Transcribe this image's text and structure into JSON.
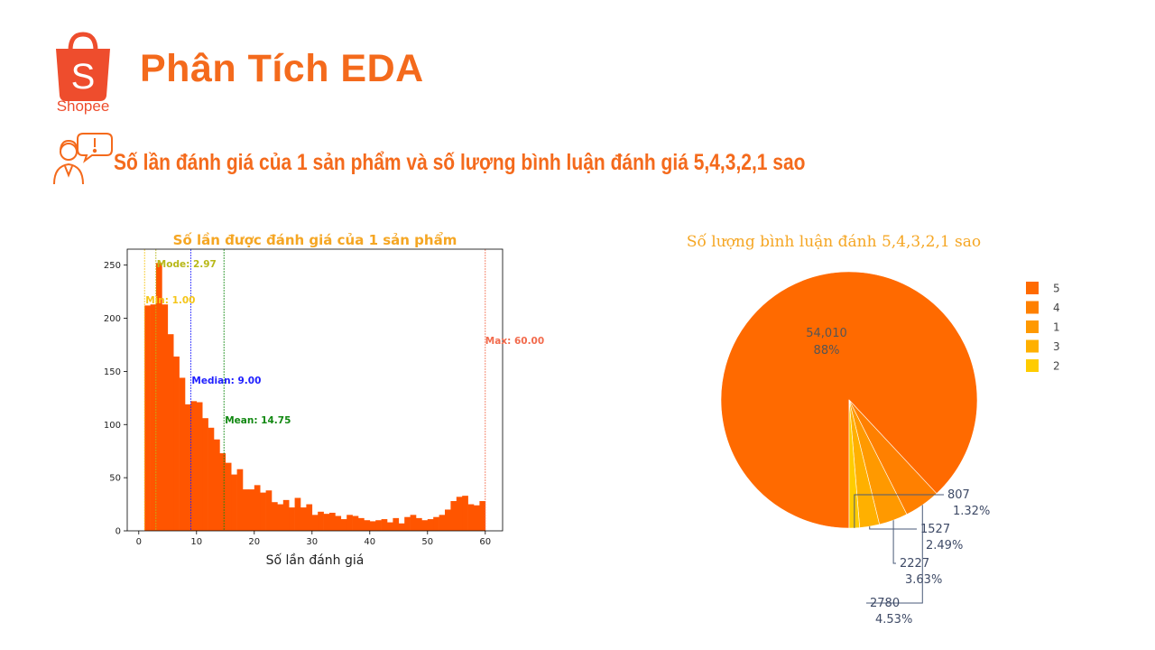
{
  "header": {
    "brand": "Shopee",
    "title": "Phân Tích EDA",
    "section_title": "Số lần đánh giá của 1 sản phẩm và số lượng bình luận đánh giá 5,4,3,2,1 sao"
  },
  "colors": {
    "brand": "#ee4d2d",
    "title": "#f46a1c",
    "hist_bar": "#ff5500",
    "min": "#f5c518",
    "mode": "#b8b818",
    "median": "#1f1fff",
    "mean": "#118811",
    "max": "#f26b4d"
  },
  "icons": {
    "logo": "shopee-bag-icon",
    "section": "person-alert-icon"
  },
  "chart_data": [
    {
      "type": "bar",
      "title": "Số lần được đánh giá của 1 sản phẩm",
      "xlabel": "Số lần đánh giá",
      "ylabel": "",
      "xlim": [
        -2,
        63
      ],
      "ylim": [
        0,
        265
      ],
      "xticks": [
        0,
        10,
        20,
        30,
        40,
        50,
        60
      ],
      "yticks": [
        0,
        50,
        100,
        150,
        200,
        250
      ],
      "bin_start": 1,
      "bin_width": 1,
      "values": [
        212,
        213,
        252,
        213,
        185,
        164,
        144,
        119,
        122,
        121,
        106,
        97,
        86,
        73,
        64,
        53,
        58,
        39,
        39,
        43,
        36,
        38,
        27,
        25,
        29,
        22,
        31,
        22,
        25,
        15,
        18,
        16,
        17,
        14,
        11,
        15,
        14,
        12,
        10,
        9,
        10,
        11,
        8,
        12,
        7,
        13,
        15,
        12,
        10,
        11,
        13,
        15,
        20,
        28,
        32,
        33,
        25,
        24,
        28
      ],
      "stat_lines": [
        {
          "key": "min",
          "label": "Min: 1.00",
          "x": 1.0
        },
        {
          "key": "mode",
          "label": "Mode: 2.97",
          "x": 2.97
        },
        {
          "key": "median",
          "label": "Median: 9.00",
          "x": 9.0
        },
        {
          "key": "mean",
          "label": "Mean: 14.75",
          "x": 14.75
        },
        {
          "key": "max",
          "label": "Max: 60.00",
          "x": 60.0
        }
      ]
    },
    {
      "type": "pie",
      "title": "Số lượng bình luận đánh 5,4,3,2,1 sao",
      "legend_position": "right",
      "slices": [
        {
          "label": "5",
          "value": 54010,
          "value_text": "54,010",
          "percent": "88%",
          "color": "#ff6a00"
        },
        {
          "label": "4",
          "value": 2780,
          "value_text": "2780",
          "percent": "4.53%",
          "color": "#ff8000"
        },
        {
          "label": "1",
          "value": 2227,
          "value_text": "2227",
          "percent": "3.63%",
          "color": "#ff9900"
        },
        {
          "label": "3",
          "value": 1527,
          "value_text": "1527",
          "percent": "2.49%",
          "color": "#ffb000"
        },
        {
          "label": "2",
          "value": 807,
          "value_text": "807",
          "percent": "1.32%",
          "color": "#ffcc00"
        }
      ]
    }
  ]
}
